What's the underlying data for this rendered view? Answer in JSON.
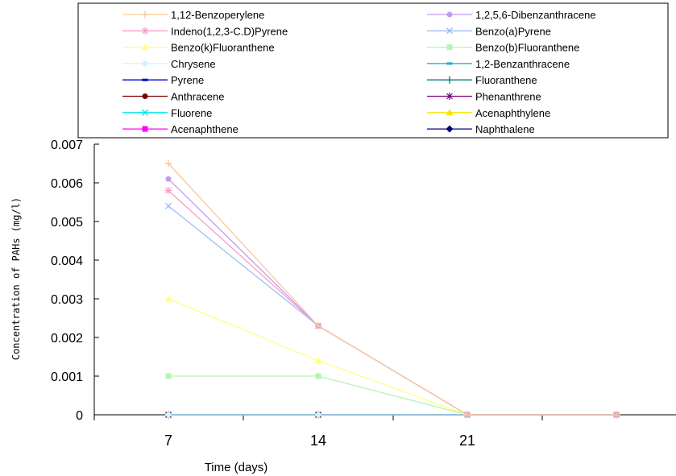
{
  "chart_data": {
    "type": "line",
    "xlabel": "Time (days)",
    "ylabel": "Concentration of PAHs (mg/l)",
    "categories": [
      "7",
      "14",
      "21",
      ""
    ],
    "ylim": [
      0,
      0.007
    ],
    "yticks": [
      "0",
      "0.001",
      "0.002",
      "0.003",
      "0.004",
      "0.005",
      "0.006",
      "0.007"
    ],
    "grid": false,
    "legend_position": "top",
    "series": [
      {
        "name": "1,12-Benzoperylene",
        "values": [
          0.0065,
          0.0023,
          0,
          0
        ],
        "color": "#f9c99b",
        "marker": "plus"
      },
      {
        "name": "1,2,5,6-Dibenzanthracene",
        "values": [
          0.0061,
          0.0023,
          0,
          0
        ],
        "color": "#c39bf0",
        "marker": "circle"
      },
      {
        "name": "Indeno(1,2,3-C.D)Pyrene",
        "values": [
          0.0058,
          0.0023,
          0,
          0
        ],
        "color": "#f79ccc",
        "marker": "star"
      },
      {
        "name": "Benzo(a)Pyrene",
        "values": [
          0.0054,
          0.0023,
          0,
          0
        ],
        "color": "#9bbff0",
        "marker": "x"
      },
      {
        "name": "Benzo(k)Fluoranthene",
        "values": [
          0.003,
          0.0014,
          0,
          0
        ],
        "color": "#ffff80",
        "marker": "triangle"
      },
      {
        "name": "Benzo(b)Fluoranthene",
        "values": [
          0.001,
          0.001,
          0,
          0
        ],
        "color": "#b3f5b3",
        "marker": "square"
      },
      {
        "name": "Chrysene",
        "values": [
          0,
          0,
          0,
          0
        ],
        "color": "#cdf7f7",
        "marker": "diamond"
      },
      {
        "name": "1,2-Benzanthracene",
        "values": [
          0,
          0,
          0,
          0
        ],
        "color": "#00b4d8",
        "marker": "dash"
      },
      {
        "name": "Pyrene",
        "values": [
          0,
          0,
          0,
          0
        ],
        "color": "#0000cc",
        "marker": "dash"
      },
      {
        "name": "Fluoranthene",
        "values": [
          0,
          0,
          0,
          0
        ],
        "color": "#008080",
        "marker": "plus"
      },
      {
        "name": "Anthracene",
        "values": [
          0,
          0,
          0,
          0
        ],
        "color": "#800000",
        "marker": "circle"
      },
      {
        "name": "Phenanthrene",
        "values": [
          0,
          0,
          0,
          0
        ],
        "color": "#800080",
        "marker": "star"
      },
      {
        "name": "Fluorene",
        "values": [
          0,
          0,
          0,
          0
        ],
        "color": "#00e5e5",
        "marker": "x"
      },
      {
        "name": "Acenaphthylene",
        "values": [
          0,
          0,
          0,
          0
        ],
        "color": "#f5e600",
        "marker": "triangle"
      },
      {
        "name": "Acenaphthene",
        "values": [
          0,
          0,
          0,
          0
        ],
        "color": "#ff00ff",
        "marker": "square"
      },
      {
        "name": "Naphthalene",
        "values": [
          0,
          0,
          0,
          0
        ],
        "color": "#000080",
        "marker": "diamond"
      }
    ]
  }
}
